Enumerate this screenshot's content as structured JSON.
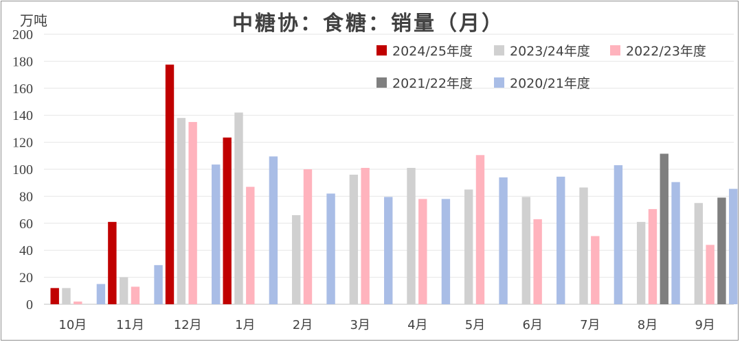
{
  "chart_data": {
    "type": "bar",
    "title": "中糖协：食糖：销量（月）",
    "unit_label": "万吨",
    "ylim": [
      0,
      200
    ],
    "yticks": [
      0,
      20,
      40,
      60,
      80,
      100,
      120,
      140,
      160,
      180,
      200
    ],
    "grid": true,
    "legend_position": "top-right",
    "categories": [
      "10月",
      "11月",
      "12月",
      "1月",
      "2月",
      "3月",
      "4月",
      "5月",
      "6月",
      "7月",
      "8月",
      "9月"
    ],
    "series": [
      {
        "name": "2024/25年度",
        "color": "#c00000",
        "values": [
          12,
          61,
          177.5,
          123.5,
          null,
          null,
          null,
          null,
          null,
          null,
          null,
          null
        ]
      },
      {
        "name": "2023/24年度",
        "color": "#d0d0d0",
        "values": [
          12,
          20,
          138,
          142,
          66,
          96,
          101,
          85,
          79.5,
          86.5,
          61,
          75
        ]
      },
      {
        "name": "2022/23年度",
        "color": "#ffb3bd",
        "values": [
          2,
          13,
          135,
          87,
          100,
          101,
          78,
          110.5,
          63,
          50.5,
          70.5,
          44
        ]
      },
      {
        "name": "2021/22年度",
        "color": "#7f7f7f",
        "values": [
          null,
          null,
          null,
          null,
          null,
          null,
          null,
          null,
          null,
          null,
          111.5,
          79
        ]
      },
      {
        "name": "2020/21年度",
        "color": "#a9bde6",
        "values": [
          15,
          29,
          103.5,
          109.5,
          82,
          79.5,
          78,
          94,
          94.5,
          103,
          90.5,
          85.5
        ]
      }
    ]
  }
}
